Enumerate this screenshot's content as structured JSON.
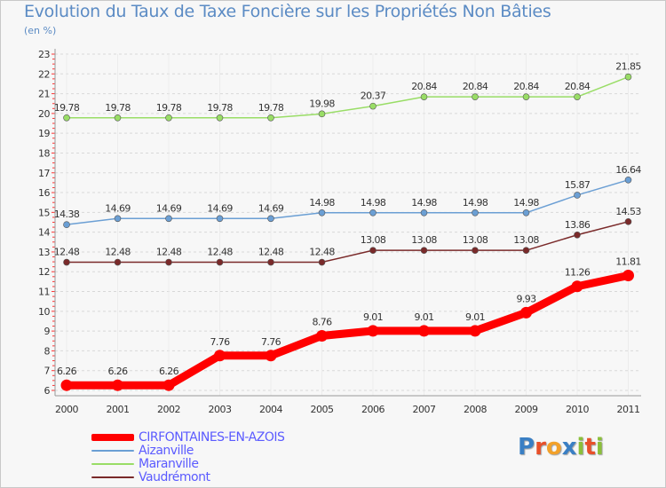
{
  "title": "Evolution du Taux de Taxe Foncière sur les Propriétés Non Bâties",
  "unit": "(en %)",
  "logo": {
    "text": "Proxiti",
    "colors": [
      "#3a7fc4",
      "#e8502a",
      "#f2a12a",
      "#3a7fc4",
      "#8bbf3a",
      "#e8502a",
      "#8bbf3a"
    ]
  },
  "chart_data": {
    "type": "line",
    "categories": [
      "2000",
      "2001",
      "2002",
      "2003",
      "2004",
      "2005",
      "2006",
      "2007",
      "2008",
      "2009",
      "2010",
      "2011"
    ],
    "ylim": [
      6,
      23
    ],
    "yticks": [
      "6",
      "7",
      "8",
      "9",
      "10",
      "11",
      "12",
      "13",
      "14",
      "15",
      "16",
      "17",
      "18",
      "19",
      "20",
      "21",
      "22",
      "23"
    ],
    "grid": "dashed horizontal, red tick marks on y axis",
    "legend_position": "bottom-left",
    "series": [
      {
        "name": "CIRFONTAINES-EN-AZOIS",
        "color": "#ff0000",
        "values": [
          6.26,
          6.26,
          6.26,
          7.76,
          7.76,
          8.76,
          9.01,
          9.01,
          9.01,
          9.93,
          11.26,
          11.81
        ],
        "labels": [
          "6.26",
          "6.26",
          "6.26",
          "7.76",
          "7.76",
          "8.76",
          "9.01",
          "9.01",
          "9.01",
          "9.93",
          "11.26",
          "11.81"
        ]
      },
      {
        "name": "Aizanville",
        "color": "#6b9fd4",
        "values": [
          14.38,
          14.69,
          14.69,
          14.69,
          14.69,
          14.98,
          14.98,
          14.98,
          14.98,
          14.98,
          15.87,
          16.64
        ],
        "labels": [
          "14.38",
          "14.69",
          "14.69",
          "14.69",
          "14.69",
          "14.98",
          "14.98",
          "14.98",
          "14.98",
          "14.98",
          "15.87",
          "16.64"
        ]
      },
      {
        "name": "Maranville",
        "color": "#99dd66",
        "values": [
          19.78,
          19.78,
          19.78,
          19.78,
          19.78,
          19.98,
          20.37,
          20.84,
          20.84,
          20.84,
          20.84,
          21.85
        ],
        "labels": [
          "19.78",
          "19.78",
          "19.78",
          "19.78",
          "19.78",
          "19.98",
          "20.37",
          "20.84",
          "20.84",
          "20.84",
          "20.84",
          "21.85"
        ]
      },
      {
        "name": "Vaudrémont",
        "color": "#7a2a2a",
        "values": [
          12.48,
          12.48,
          12.48,
          12.48,
          12.48,
          12.48,
          13.08,
          13.08,
          13.08,
          13.08,
          13.86,
          14.53
        ],
        "labels": [
          "12.48",
          "12.48",
          "12.48",
          "12.48",
          "12.48",
          "12.48",
          "13.08",
          "13.08",
          "13.08",
          "13.08",
          "13.86",
          "14.53"
        ]
      }
    ]
  }
}
